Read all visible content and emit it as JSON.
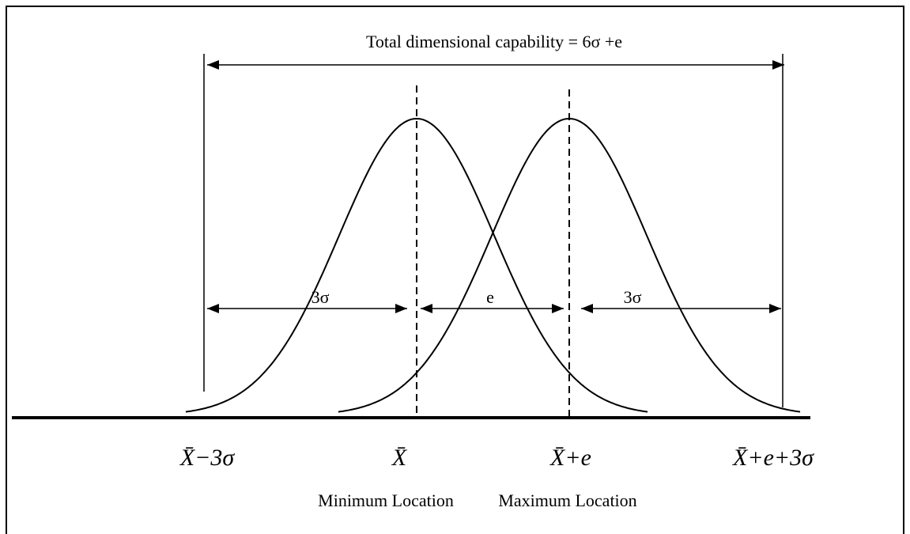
{
  "title": "Total dimensional capability = 6σ +e",
  "spans": {
    "left": "3σ",
    "middle": "e",
    "right": "3σ"
  },
  "axis_labels": [
    "X̄−3σ",
    "X̄",
    "X̄+e",
    "X̄+e+3σ"
  ],
  "location_labels": {
    "minimum": "Minimum Location",
    "maximum": "Maximum Location"
  }
}
